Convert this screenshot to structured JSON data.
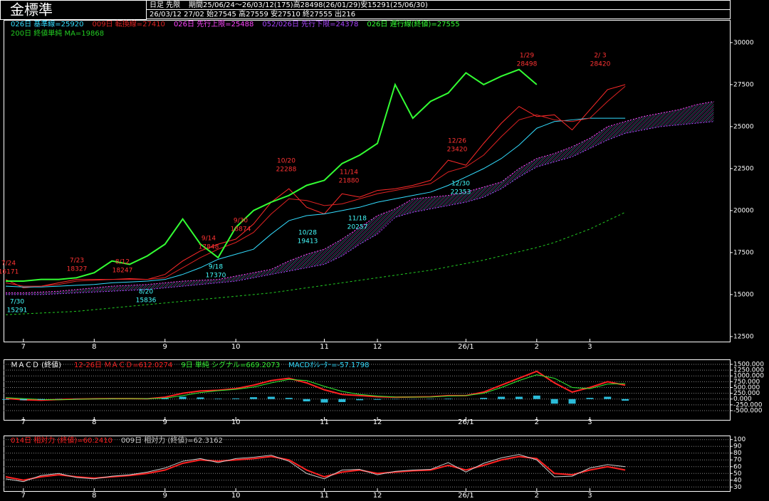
{
  "header": {
    "title": "金標準",
    "mode": "日足 先限",
    "period": "期間25/06/24～26/03/12(175)高28498(26/01/29)安15291(25/06/30)",
    "last": "26/03/12 27/02 始27545 高27559 安27510 終27555 出216"
  },
  "chart_data": [
    {
      "type": "line",
      "categories": [
        null,
        "7",
        null,
        null,
        null,
        "8",
        null,
        null,
        null,
        "9",
        null,
        null,
        null,
        "10",
        null,
        null,
        null,
        null,
        "11",
        null,
        null,
        "12",
        null,
        null,
        null,
        null,
        "26/1",
        null,
        null,
        null,
        "2",
        null,
        null,
        "3",
        null,
        null,
        null,
        null,
        null,
        null,
        null
      ],
      "ylim": [
        12200,
        31350
      ],
      "yticks": [
        12500,
        15000,
        17500,
        20000,
        22500,
        25000,
        27500,
        30000
      ],
      "grid": false,
      "series": [
        {
          "color": "#ff2a2a",
          "style": "solid",
          "values": [
            15900,
            15400,
            15500,
            15700,
            15900,
            15900,
            15900,
            15950,
            15900,
            16200,
            17000,
            17600,
            18000,
            18300,
            19200,
            20500,
            21300,
            20200,
            19800,
            21000,
            20800,
            21200,
            21300,
            21500,
            21800,
            23000,
            22700,
            24000,
            25200,
            26200,
            25600,
            25700,
            24800,
            26000,
            27200,
            27500,
            null,
            null,
            null,
            null,
            null
          ]
        },
        {
          "name": "026日 基準線=25920",
          "color": "#33ddff",
          "style": "solid",
          "values": [
            15500,
            15450,
            15450,
            15500,
            15550,
            15600,
            15700,
            15750,
            15800,
            15900,
            16200,
            16600,
            17100,
            17400,
            17700,
            18600,
            19400,
            19700,
            19800,
            20000,
            20200,
            20500,
            20700,
            20900,
            21100,
            21500,
            22000,
            22500,
            23100,
            23900,
            24900,
            25300,
            25400,
            25500,
            25500,
            25500,
            null,
            null,
            null,
            null,
            null
          ]
        },
        {
          "name": "009日 転換線=27410",
          "color": "#dd2222",
          "style": "solid",
          "values": [
            15700,
            15500,
            15500,
            15600,
            15800,
            15850,
            15900,
            15900,
            15900,
            16000,
            16600,
            17200,
            17700,
            18100,
            18700,
            19800,
            20700,
            20600,
            20300,
            20400,
            20700,
            21000,
            21200,
            21400,
            21600,
            22300,
            22600,
            23300,
            24400,
            25400,
            25700,
            25400,
            25300,
            25500,
            26500,
            27400,
            null,
            null,
            null,
            null,
            null
          ]
        },
        {
          "name": "026日 先行上限=25488",
          "color": "#ff44ff",
          "style": "cloud",
          "values": [
            15100,
            15100,
            15150,
            15200,
            15300,
            15400,
            15500,
            15550,
            15600,
            15700,
            15800,
            15850,
            15900,
            16100,
            16300,
            16500,
            17000,
            17400,
            17700,
            18300,
            19000,
            19700,
            20100,
            20700,
            20800,
            20900,
            21100,
            21400,
            21700,
            22500,
            23100,
            23400,
            23800,
            24300,
            25000,
            25300,
            25600,
            25800,
            26000,
            26300,
            26500
          ]
        },
        {
          "name": "052/026日 先行下限=24378",
          "color": "#aa44ff",
          "style": "cloud",
          "values": [
            15000,
            15000,
            15000,
            15050,
            15100,
            15150,
            15200,
            15250,
            15300,
            15400,
            15500,
            15600,
            15700,
            15800,
            16000,
            16200,
            16400,
            16600,
            16800,
            17300,
            18000,
            18600,
            19600,
            19900,
            20100,
            20300,
            20500,
            20800,
            21300,
            22000,
            22600,
            22900,
            23200,
            23700,
            24200,
            24600,
            24800,
            25000,
            25100,
            25200,
            25300
          ]
        },
        {
          "name": "026日 遅行線(終値)=27555",
          "color": "#33ff33",
          "style": "bold",
          "values": [
            15800,
            15800,
            15900,
            15900,
            16000,
            16300,
            17000,
            16800,
            17300,
            18000,
            19500,
            18000,
            17200,
            19000,
            20000,
            20500,
            20900,
            21500,
            21800,
            22800,
            23300,
            24000,
            27500,
            25500,
            26500,
            27000,
            28200,
            27500,
            28000,
            28400,
            27500,
            null,
            null,
            null,
            null,
            null,
            null,
            null,
            null,
            null,
            null
          ]
        },
        {
          "name": "200日 終値単純 MA=19868",
          "color": "#22cc22",
          "style": "dashed",
          "values": [
            13800,
            13850,
            13900,
            13950,
            14000,
            14100,
            14200,
            14300,
            14400,
            14500,
            14600,
            14700,
            14800,
            14900,
            15000,
            15100,
            15250,
            15400,
            15550,
            15700,
            15850,
            16000,
            16150,
            16300,
            16450,
            16650,
            16850,
            17050,
            17300,
            17550,
            17800,
            18100,
            18500,
            18900,
            19400,
            19900,
            null,
            null,
            null,
            null,
            null
          ]
        }
      ],
      "annotations": [
        {
          "date": "7/24",
          "price": 16171,
          "color": "#ff3333"
        },
        {
          "date": "7/23",
          "price": 18327,
          "color": "#ff3333"
        },
        {
          "date": "8/12",
          "price": 18247,
          "color": "#ff3333"
        },
        {
          "date": "9/14",
          "price": 17848,
          "color": "#ff3333"
        },
        {
          "date": "9/30",
          "price": 18874,
          "color": "#ff3333"
        },
        {
          "date": "10/20",
          "price": 22288,
          "color": "#ff3333"
        },
        {
          "date": "11/14",
          "price": 21880,
          "color": "#ff3333"
        },
        {
          "date": "12/26",
          "price": 23420,
          "color": "#ff3333"
        },
        {
          "date": "1/29",
          "price": 28498,
          "color": "#ff3333"
        },
        {
          "date": "2/ 3",
          "price": 28420,
          "color": "#ff3333"
        },
        {
          "date": "7/30",
          "price": 15291,
          "color": "#44ffff"
        },
        {
          "date": "8/20",
          "price": 15836,
          "color": "#44ffff"
        },
        {
          "date": "9/18",
          "price": 17370,
          "color": "#44ffff"
        },
        {
          "date": "10/28",
          "price": 19413,
          "color": "#44ffff"
        },
        {
          "date": "11/18",
          "price": 20257,
          "color": "#44ffff"
        },
        {
          "date": "12/30",
          "price": 22353,
          "color": "#44ffff"
        }
      ]
    },
    {
      "type": "line",
      "title": "ＭＡＣＤ (終値)",
      "categories": [
        null,
        "7",
        null,
        null,
        null,
        "8",
        null,
        null,
        null,
        "9",
        null,
        null,
        null,
        "10",
        null,
        null,
        null,
        null,
        "11",
        null,
        null,
        "12",
        null,
        null,
        null,
        null,
        "26/1",
        null,
        null,
        null,
        "2",
        null,
        null,
        "3",
        null,
        null,
        null,
        null,
        null,
        null,
        null
      ],
      "ylim": [
        -900,
        1715
      ],
      "yticks": [
        {
          "value": -500,
          "label": "-500.000"
        },
        {
          "value": -250,
          "label": "-250.000"
        },
        {
          "value": 0,
          "label": "0.000"
        },
        {
          "value": 250,
          "label": "250.000"
        },
        {
          "value": 500,
          "label": "500.000"
        },
        {
          "value": 750,
          "label": "750.000"
        },
        {
          "value": 1000,
          "label": "1000.000"
        },
        {
          "value": 1250,
          "label": "1250.000"
        },
        {
          "value": 1500,
          "label": "1500.000"
        }
      ],
      "grid": true,
      "series": [
        {
          "name": "12-26日 ＭＡＣＤ=612.0274",
          "color": "#ff2222",
          "style": "bold",
          "values": [
            30,
            -30,
            -50,
            -20,
            0,
            10,
            20,
            20,
            10,
            80,
            250,
            350,
            380,
            450,
            600,
            800,
            900,
            700,
            400,
            200,
            150,
            100,
            80,
            90,
            100,
            150,
            150,
            300,
            600,
            900,
            1200,
            700,
            300,
            500,
            750,
            600,
            null,
            null,
            null,
            null,
            null
          ]
        },
        {
          "name": "9日 単純 シグナル=669.2073",
          "color": "#33ee33",
          "style": "solid",
          "values": [
            60,
            20,
            -20,
            -30,
            -10,
            5,
            15,
            20,
            15,
            40,
            150,
            280,
            360,
            420,
            520,
            700,
            850,
            800,
            550,
            330,
            200,
            130,
            90,
            85,
            90,
            130,
            150,
            250,
            500,
            800,
            1050,
            900,
            500,
            450,
            650,
            670,
            null,
            null,
            null,
            null,
            null
          ]
        },
        {
          "name": "MACDｵｼﾚｰﾀｰ=-57.1798",
          "color": "#33ddff",
          "style": "bar",
          "values": [
            -30,
            -50,
            -30,
            10,
            10,
            5,
            5,
            0,
            -5,
            40,
            100,
            70,
            20,
            30,
            80,
            100,
            50,
            -100,
            -150,
            -130,
            -50,
            -30,
            -10,
            5,
            10,
            20,
            0,
            50,
            100,
            100,
            150,
            -200,
            -200,
            50,
            100,
            -70,
            null,
            null,
            null,
            null,
            null
          ]
        }
      ]
    },
    {
      "type": "line",
      "categories": [
        null,
        "7",
        null,
        null,
        null,
        "8",
        null,
        null,
        null,
        "9",
        null,
        null,
        null,
        "10",
        null,
        null,
        null,
        null,
        "11",
        null,
        null,
        "12",
        null,
        null,
        null,
        null,
        "26/1",
        null,
        null,
        null,
        "2",
        null,
        null,
        "3",
        null,
        null,
        null,
        null,
        null,
        null,
        null
      ],
      "ylim": [
        24,
        106
      ],
      "yticks": [
        30,
        40,
        50,
        60,
        70,
        80,
        90,
        100
      ],
      "grid": true,
      "series": [
        {
          "name": "014日 相対力 (終値)=60.2410",
          "color": "#ff2222",
          "style": "bold",
          "values": [
            45,
            40,
            45,
            48,
            45,
            43,
            45,
            47,
            50,
            55,
            65,
            70,
            68,
            70,
            72,
            75,
            70,
            55,
            45,
            52,
            55,
            50,
            52,
            54,
            55,
            62,
            55,
            62,
            70,
            75,
            72,
            50,
            48,
            55,
            60,
            55,
            null,
            null,
            null,
            null,
            null
          ]
        },
        {
          "name": "009日 相対力 (終値)=62.3162",
          "color": "#cccccc",
          "style": "solid",
          "values": [
            42,
            38,
            47,
            50,
            44,
            42,
            46,
            48,
            52,
            58,
            68,
            72,
            66,
            72,
            74,
            77,
            68,
            50,
            42,
            55,
            56,
            48,
            53,
            55,
            56,
            66,
            52,
            65,
            73,
            78,
            70,
            45,
            46,
            58,
            63,
            60,
            null,
            null,
            null,
            null,
            null
          ]
        }
      ]
    }
  ]
}
